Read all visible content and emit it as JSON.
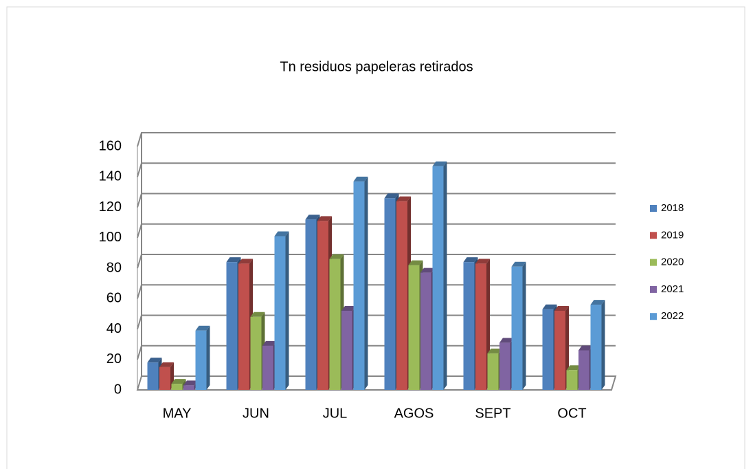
{
  "chart_data": {
    "type": "bar3d",
    "title": "Tn residuos papeleras retirados",
    "categories": [
      "MAY",
      "JUN",
      "JUL",
      "AGOS",
      "SEPT",
      "OCT"
    ],
    "series": [
      {
        "name": "2018",
        "color": "#4f81bd",
        "values": [
          18,
          84,
          112,
          126,
          84,
          53
        ]
      },
      {
        "name": "2019",
        "color": "#c0504d",
        "values": [
          15,
          83,
          111,
          124,
          83,
          52
        ]
      },
      {
        "name": "2020",
        "color": "#9bbb59",
        "values": [
          4,
          48,
          86,
          82,
          24,
          13
        ]
      },
      {
        "name": "2021",
        "color": "#8064a2",
        "values": [
          3,
          29,
          52,
          77,
          31,
          26
        ]
      },
      {
        "name": "2022",
        "color": "#5b9bd5",
        "values": [
          39,
          101,
          137,
          147,
          81,
          56
        ]
      }
    ],
    "ylim": [
      0,
      160
    ],
    "yticks": [
      0,
      20,
      40,
      60,
      80,
      100,
      120,
      140,
      160
    ],
    "grid": true,
    "legend": "right"
  }
}
